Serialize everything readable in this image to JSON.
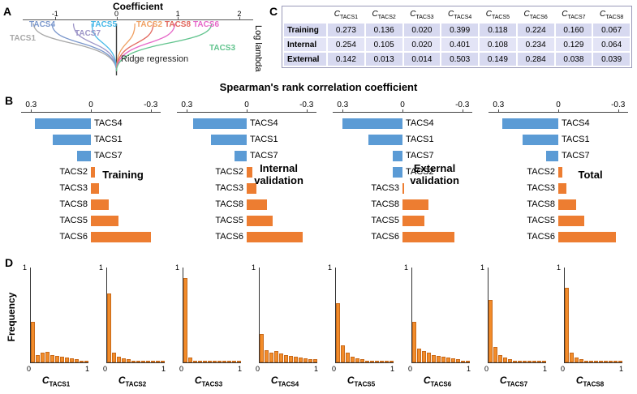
{
  "panels": {
    "a": {
      "label": "A"
    },
    "b": {
      "label": "B"
    },
    "c": {
      "label": "C",
      "table": {
        "columns": [
          {
            "main": "C",
            "sub": "TACS1"
          },
          {
            "main": "C",
            "sub": "TACS2"
          },
          {
            "main": "C",
            "sub": "TACS3"
          },
          {
            "main": "C",
            "sub": "TACS4"
          },
          {
            "main": "C",
            "sub": "TACS5"
          },
          {
            "main": "C",
            "sub": "TACS6"
          },
          {
            "main": "C",
            "sub": "TACS7"
          },
          {
            "main": "C",
            "sub": "TACS8"
          }
        ],
        "rows": [
          {
            "label": "Training",
            "values": [
              "0.273",
              "0.136",
              "0.020",
              "0.399",
              "0.118",
              "0.224",
              "0.160",
              "0.067"
            ]
          },
          {
            "label": "Internal",
            "values": [
              "0.254",
              "0.105",
              "0.020",
              "0.401",
              "0.108",
              "0.234",
              "0.129",
              "0.064"
            ]
          },
          {
            "label": "External",
            "values": [
              "0.142",
              "0.013",
              "0.014",
              "0.503",
              "0.149",
              "0.284",
              "0.038",
              "0.039"
            ]
          }
        ]
      }
    },
    "d": {
      "label": "D"
    }
  },
  "chart_data": [
    {
      "id": "ridge",
      "type": "line",
      "title": "Coefficient",
      "ylabel": "Log lambda",
      "annotation": "Ridge regression",
      "x_ticks": [
        -1,
        0,
        1,
        2
      ],
      "xlim": [
        -1.5,
        2.2
      ],
      "note": "coefficient paths shrink toward 0 as log lambda increases",
      "series": [
        {
          "name": "TACS1",
          "color": "#a8a8a8",
          "coef_at_top": -1.35
        },
        {
          "name": "TACS4",
          "color": "#7a97cc",
          "coef_at_top": -1.05
        },
        {
          "name": "TACS7",
          "color": "#9e96c8",
          "coef_at_top": -0.7
        },
        {
          "name": "TACS5",
          "color": "#45b8e8",
          "coef_at_top": -0.4
        },
        {
          "name": "TACS2",
          "color": "#f0a062",
          "coef_at_top": 0.3
        },
        {
          "name": "TACS8",
          "color": "#e2695f",
          "coef_at_top": 0.6
        },
        {
          "name": "TACS6",
          "color": "#e668c8",
          "coef_at_top": 0.95
        },
        {
          "name": "TACS3",
          "color": "#62c48e",
          "coef_at_top": 1.55
        }
      ]
    },
    {
      "id": "spearman",
      "type": "bar",
      "orientation": "horizontal",
      "title": "Spearman's rank correlation coefficient",
      "categories": [
        "TACS4",
        "TACS1",
        "TACS7",
        "TACS2",
        "TACS3",
        "TACS8",
        "TACS5",
        "TACS6"
      ],
      "x_ticks": [
        0.3,
        0,
        -0.3
      ],
      "xlim": [
        0.35,
        -0.35
      ],
      "positive_color": "#5b9bd5",
      "negative_color": "#ed7d31",
      "series": [
        {
          "name": "Training",
          "annotation_lines": [
            "Training"
          ],
          "values": [
            0.28,
            0.19,
            0.07,
            -0.02,
            -0.04,
            -0.09,
            -0.14,
            -0.3
          ]
        },
        {
          "name": "Internal validation",
          "annotation_lines": [
            "Internal",
            "validation"
          ],
          "values": [
            0.27,
            0.18,
            0.06,
            -0.03,
            -0.05,
            -0.1,
            -0.13,
            -0.28
          ]
        },
        {
          "name": "External validation",
          "annotation_lines": [
            "External",
            "validation"
          ],
          "values": [
            0.3,
            0.17,
            0.05,
            0.05,
            -0.01,
            -0.13,
            -0.11,
            -0.26
          ]
        },
        {
          "name": "Total",
          "annotation_lines": [
            "Total"
          ],
          "values": [
            0.28,
            0.18,
            0.06,
            -0.02,
            -0.04,
            -0.09,
            -0.13,
            -0.29
          ]
        }
      ]
    },
    {
      "id": "histograms",
      "type": "bar",
      "ylabel": "Frequency",
      "ylim": [
        0,
        1
      ],
      "xlim": [
        0,
        1
      ],
      "x_ticks": [
        0,
        1
      ],
      "y_ticks": [
        1
      ],
      "bar_color": "#f28c2a",
      "charts": [
        {
          "label_main": "C",
          "label_sub": "TACS1",
          "frequencies": [
            0.42,
            0.08,
            0.1,
            0.11,
            0.08,
            0.07,
            0.06,
            0.05,
            0.04,
            0.03,
            0.02,
            0.02
          ]
        },
        {
          "label_main": "C",
          "label_sub": "TACS2",
          "frequencies": [
            0.72,
            0.1,
            0.06,
            0.04,
            0.03,
            0.02,
            0.02,
            0.01,
            0.01,
            0.01,
            0.01,
            0.01
          ]
        },
        {
          "label_main": "C",
          "label_sub": "TACS3",
          "frequencies": [
            0.88,
            0.05,
            0.02,
            0.01,
            0.01,
            0.005,
            0.005,
            0.005,
            0.005,
            0.005,
            0.005,
            0.01
          ]
        },
        {
          "label_main": "C",
          "label_sub": "TACS4",
          "frequencies": [
            0.3,
            0.13,
            0.1,
            0.12,
            0.09,
            0.08,
            0.07,
            0.06,
            0.05,
            0.04,
            0.03,
            0.03
          ]
        },
        {
          "label_main": "C",
          "label_sub": "TACS5",
          "frequencies": [
            0.62,
            0.18,
            0.1,
            0.06,
            0.04,
            0.03,
            0.02,
            0.02,
            0.01,
            0.01,
            0.01,
            0.01
          ]
        },
        {
          "label_main": "C",
          "label_sub": "TACS6",
          "frequencies": [
            0.42,
            0.14,
            0.12,
            0.1,
            0.08,
            0.07,
            0.06,
            0.05,
            0.04,
            0.03,
            0.02,
            0.02
          ]
        },
        {
          "label_main": "C",
          "label_sub": "TACS7",
          "frequencies": [
            0.65,
            0.16,
            0.08,
            0.05,
            0.03,
            0.02,
            0.02,
            0.01,
            0.01,
            0.01,
            0.01,
            0.01
          ]
        },
        {
          "label_main": "C",
          "label_sub": "TACS8",
          "frequencies": [
            0.78,
            0.1,
            0.05,
            0.03,
            0.02,
            0.01,
            0.01,
            0.01,
            0.005,
            0.005,
            0.005,
            0.01
          ]
        }
      ]
    }
  ]
}
